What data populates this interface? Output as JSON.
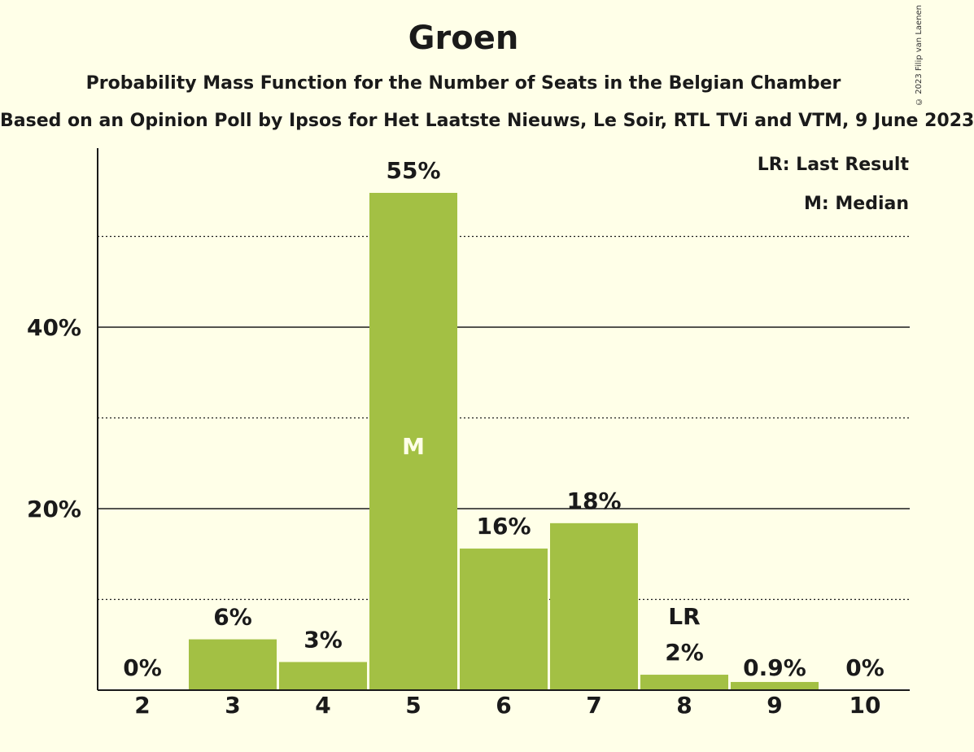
{
  "title": "Groen",
  "subtitle": "Probability Mass Function for the Number of Seats in the Belgian Chamber",
  "subsubtitle": "Based on an Opinion Poll by Ipsos for Het Laatste Nieuws, Le Soir, RTL TVi and VTM, 9 June 2023",
  "copyright": "© 2023 Filip van Laenen",
  "legend": {
    "last_result": "LR: Last Result",
    "median": "M: Median"
  },
  "colors": {
    "bar": "#a3c044",
    "background": "#ffffe8"
  },
  "chart_data": {
    "type": "bar",
    "categories": [
      "2",
      "3",
      "4",
      "5",
      "6",
      "7",
      "8",
      "9",
      "10"
    ],
    "values": [
      0,
      5.6,
      3.1,
      54.8,
      15.6,
      18.4,
      1.7,
      0.9,
      0
    ],
    "value_labels": [
      "0%",
      "6%",
      "3%",
      "55%",
      "16%",
      "18%",
      "2%",
      "0.9%",
      "0%"
    ],
    "yticks": [
      20,
      40
    ],
    "ytick_labels": [
      "20%",
      "40%"
    ],
    "minor_gridlines": [
      10,
      30,
      50
    ],
    "ylim": [
      0,
      60
    ],
    "median_category": "5",
    "median_marker": "M",
    "last_result_category": "8",
    "last_result_marker": "LR",
    "legend_position": "top-right"
  }
}
